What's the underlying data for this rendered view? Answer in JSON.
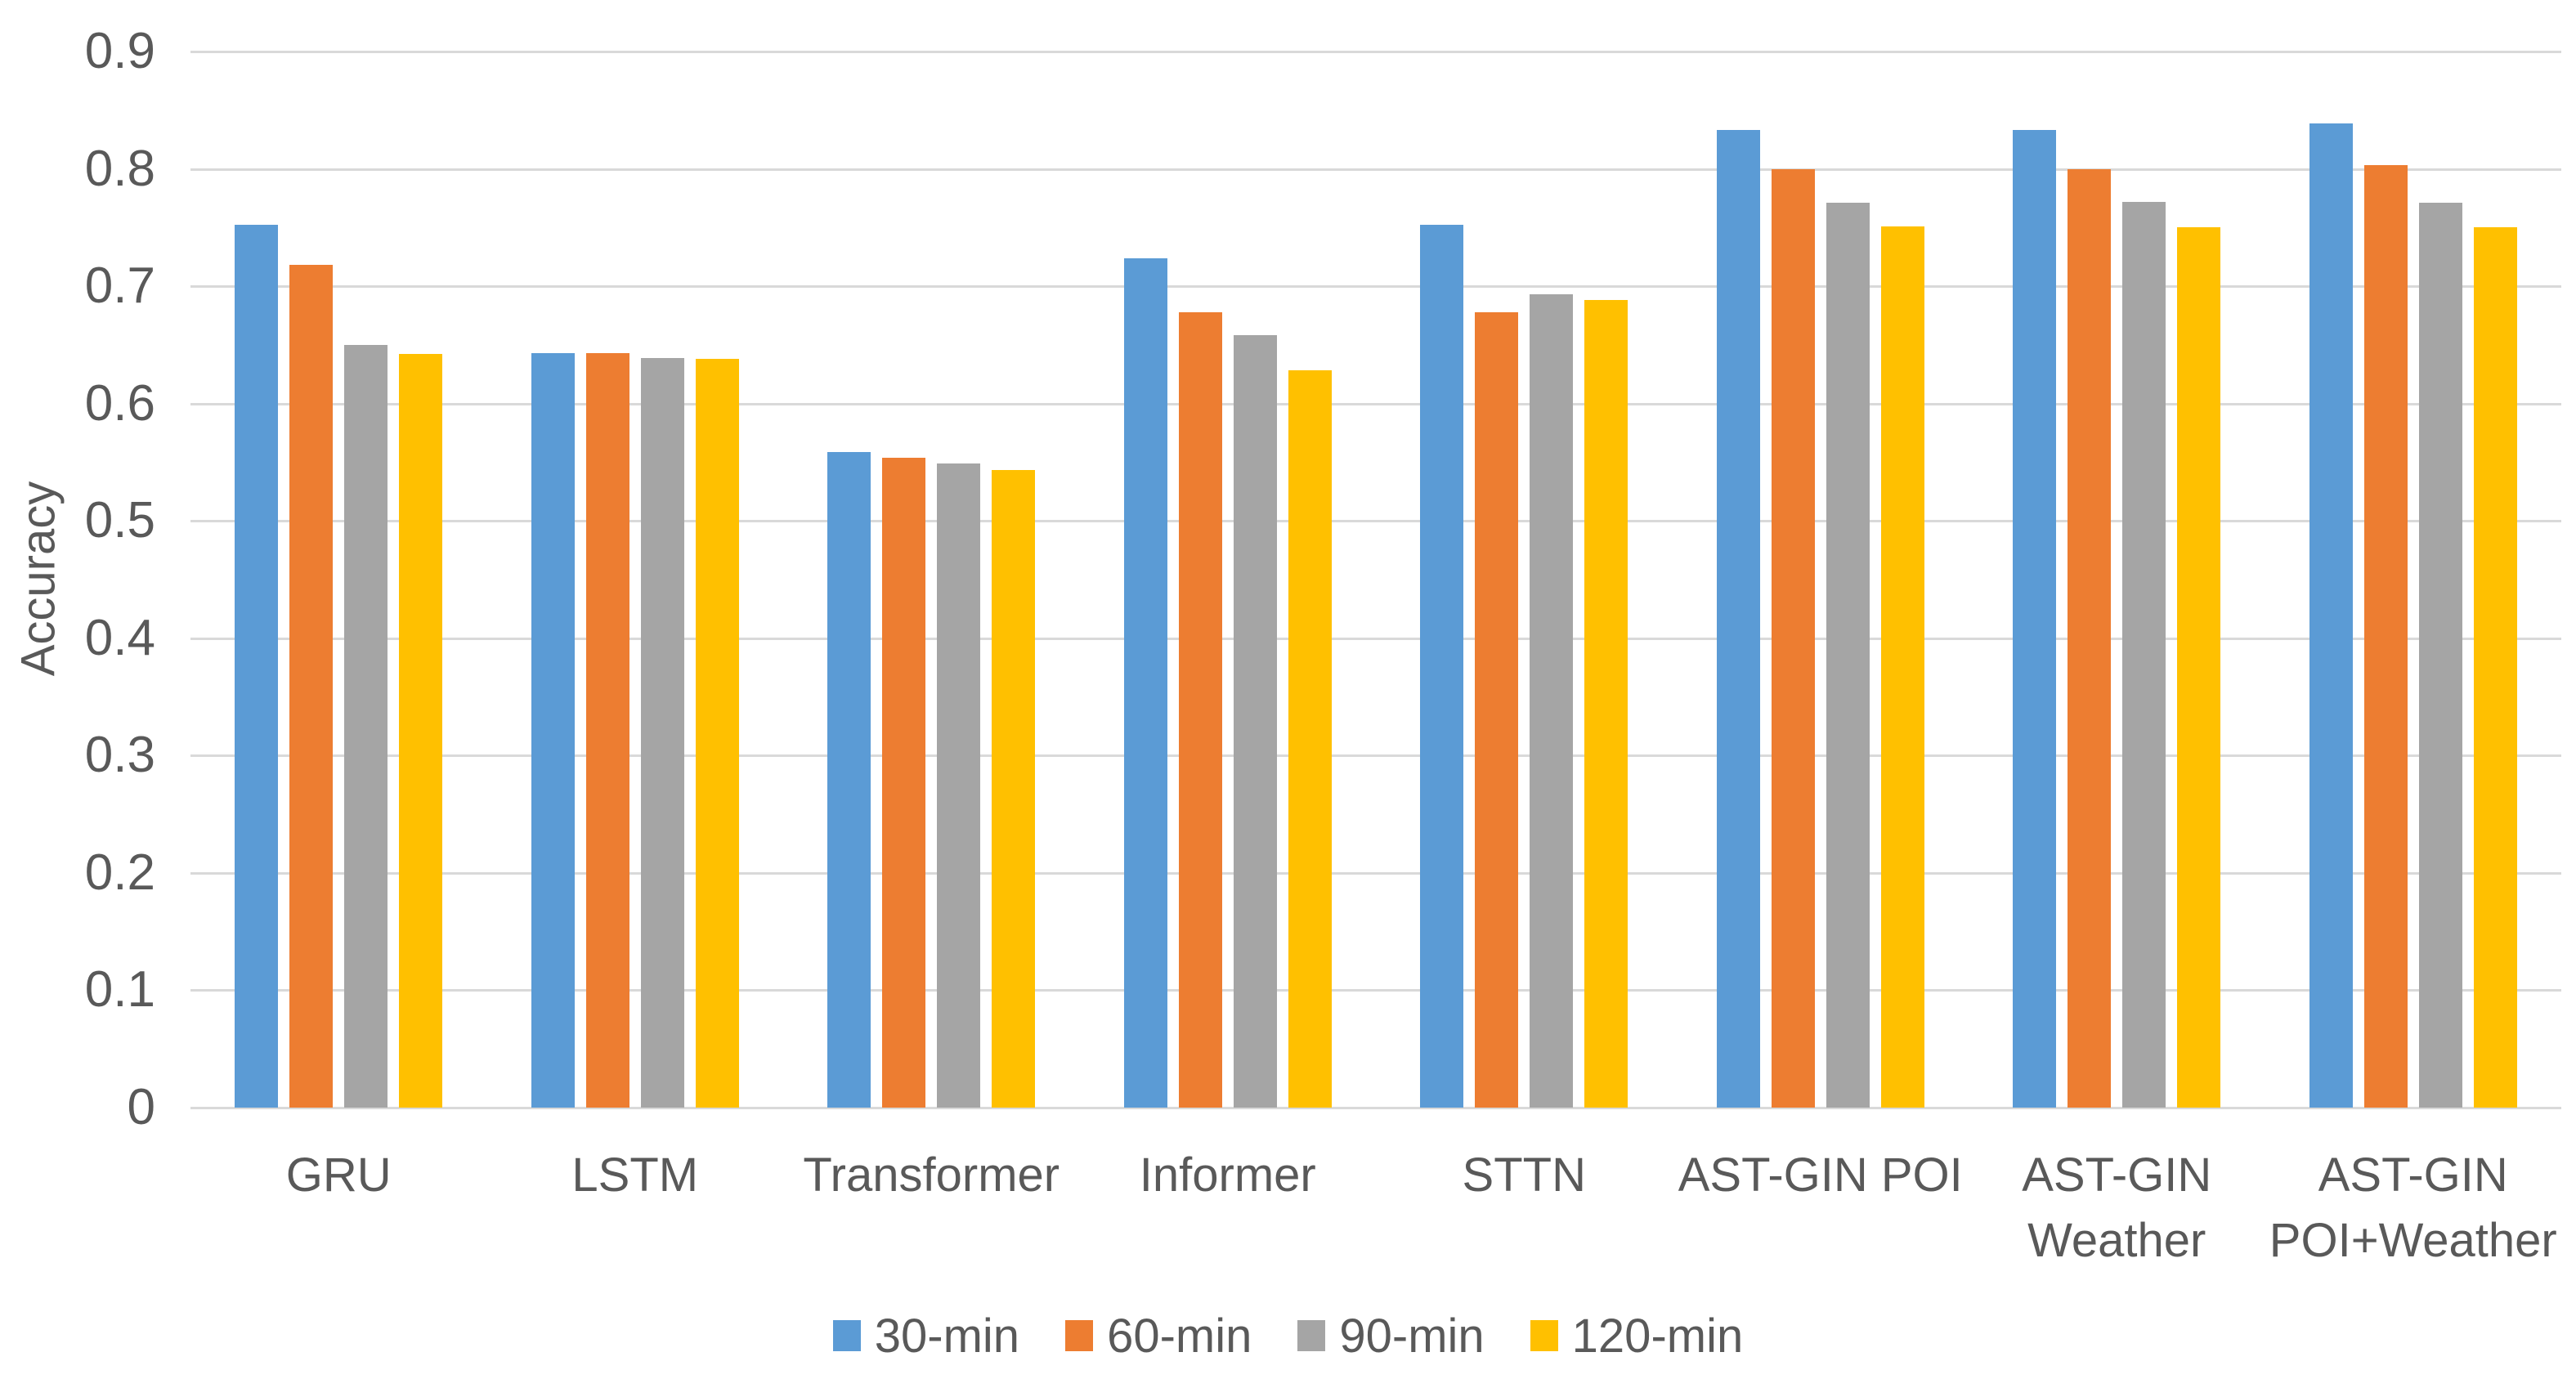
{
  "chart_data": {
    "type": "bar",
    "title": "",
    "xlabel": "",
    "ylabel": "Accuracy",
    "ylim": [
      0,
      0.9
    ],
    "ytick_step": 0.1,
    "ytick_labels": [
      "0.9",
      "0.8",
      "0.7",
      "0.6",
      "0.5",
      "0.4",
      "0.3",
      "0.2",
      "0.1",
      "0"
    ],
    "grid": true,
    "legend_position": "bottom",
    "categories": [
      "GRU",
      "LSTM",
      "Transformer",
      "Informer",
      "STTN",
      "AST-GIN POI",
      "AST-GIN Weather",
      "AST-GIN POI+Weather"
    ],
    "category_label_lines": [
      [
        "GRU"
      ],
      [
        "LSTM"
      ],
      [
        "Transformer"
      ],
      [
        "Informer"
      ],
      [
        "STTN"
      ],
      [
        "AST-GIN POI"
      ],
      [
        "AST-GIN",
        "Weather"
      ],
      [
        "AST-GIN",
        "POI+Weather"
      ]
    ],
    "series": [
      {
        "name": "30-min",
        "color": "#5B9BD5",
        "values": [
          0.752,
          0.643,
          0.559,
          0.724,
          0.752,
          0.833,
          0.833,
          0.839
        ]
      },
      {
        "name": "60-min",
        "color": "#ED7D31",
        "values": [
          0.718,
          0.643,
          0.554,
          0.678,
          0.678,
          0.8,
          0.8,
          0.803
        ]
      },
      {
        "name": "90-min",
        "color": "#A5A5A5",
        "values": [
          0.65,
          0.639,
          0.549,
          0.658,
          0.693,
          0.771,
          0.772,
          0.771
        ]
      },
      {
        "name": "120-min",
        "color": "#FFC000",
        "values": [
          0.642,
          0.638,
          0.543,
          0.628,
          0.688,
          0.751,
          0.75,
          0.75
        ]
      }
    ],
    "colors": {
      "gridline": "#D9D9D9",
      "axis_text": "#595959",
      "background": "#FFFFFF"
    }
  }
}
